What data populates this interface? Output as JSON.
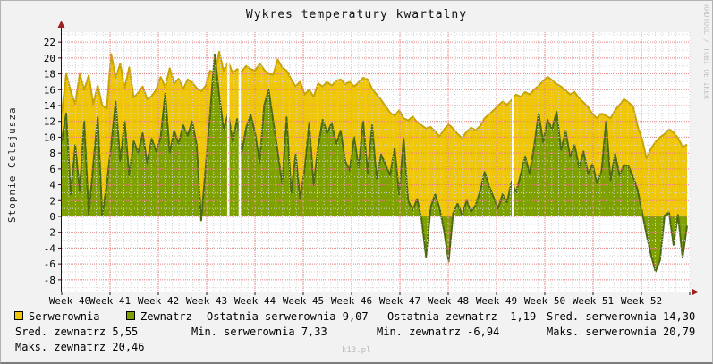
{
  "chart_data": {
    "type": "area",
    "title": "Wykres temperatury kwartalny",
    "ylabel": "Stopnie Celsjusza",
    "xlabel": "",
    "ylim": [
      -9.5,
      23.2
    ],
    "y_ticks": [
      -8,
      -6,
      -4,
      -2,
      0,
      2,
      4,
      6,
      8,
      10,
      12,
      14,
      16,
      18,
      20,
      22
    ],
    "x_tick_labels": [
      "Week 40",
      "Week 41",
      "Week 42",
      "Week 43",
      "Week 44",
      "Week 45",
      "Week 46",
      "Week 47",
      "Week 48",
      "Week 49",
      "Week 50",
      "Week 51",
      "Week 52"
    ],
    "grid": true,
    "legend_position": "bottom",
    "missing_data_gaps_x_fraction": [
      0.265,
      0.283,
      0.718
    ],
    "series": [
      {
        "name": "Serwerownia",
        "fill_color": "#f0c609",
        "line_color": "#c7a400",
        "values": [
          13.0,
          18.0,
          15.8,
          14.2,
          18.0,
          16.0,
          17.8,
          14.2,
          16.5,
          14.0,
          13.6,
          20.5,
          17.5,
          19.3,
          16.2,
          18.8,
          15.0,
          15.6,
          16.4,
          14.8,
          15.2,
          16.0,
          17.6,
          16.3,
          18.7,
          16.8,
          17.4,
          16.1,
          17.3,
          16.9,
          16.2,
          15.8,
          16.5,
          18.4,
          18.0,
          20.79,
          18.4,
          19.5,
          18.1,
          18.6,
          18.3,
          19.0,
          18.6,
          18.4,
          19.3,
          18.5,
          18.0,
          17.9,
          19.8,
          18.8,
          18.4,
          17.3,
          16.4,
          17.0,
          15.4,
          16.0,
          15.1,
          16.8,
          16.4,
          17.0,
          16.5,
          17.1,
          17.3,
          16.7,
          17.0,
          16.4,
          16.9,
          17.5,
          17.3,
          16.1,
          15.4,
          14.7,
          13.9,
          13.1,
          12.7,
          13.4,
          12.4,
          12.1,
          12.6,
          11.9,
          11.5,
          11.1,
          11.3,
          10.7,
          10.1,
          11.0,
          11.6,
          11.1,
          10.4,
          9.9,
          10.7,
          11.2,
          10.9,
          11.4,
          12.4,
          12.9,
          13.4,
          14.0,
          14.5,
          14.1,
          14.7,
          15.4,
          15.1,
          15.7,
          15.4,
          16.0,
          16.5,
          17.1,
          17.6,
          17.2,
          16.7,
          16.4,
          15.9,
          15.4,
          15.7,
          14.9,
          14.4,
          13.8,
          12.9,
          12.4,
          13.0,
          12.7,
          12.4,
          13.4,
          14.1,
          14.8,
          14.4,
          13.9,
          11.4,
          9.8,
          7.33,
          8.6,
          9.4,
          10.0,
          10.4,
          11.0,
          10.6,
          9.9,
          8.8,
          9.07
        ]
      },
      {
        "name": "Zewnatrz",
        "fill_color": "#7ea100",
        "line_color": "#4d6a12",
        "values": [
          9.5,
          13.0,
          2.8,
          9.0,
          3.2,
          12.0,
          0.2,
          6.5,
          12.5,
          0.1,
          4.0,
          9.0,
          14.5,
          7.0,
          12.0,
          5.2,
          9.5,
          8.0,
          10.5,
          6.8,
          9.8,
          8.2,
          10.0,
          15.5,
          8.0,
          10.8,
          9.2,
          11.5,
          10.2,
          12.0,
          9.0,
          -0.5,
          6.2,
          13.0,
          20.46,
          15.3,
          11.0,
          13.0,
          9.5,
          12.3,
          8.0,
          11.2,
          12.8,
          10.5,
          6.8,
          14.0,
          16.0,
          12.0,
          8.2,
          4.2,
          12.5,
          3.0,
          7.8,
          2.2,
          6.0,
          11.8,
          4.0,
          8.8,
          12.2,
          10.5,
          11.8,
          9.2,
          10.8,
          7.0,
          5.8,
          10.0,
          6.2,
          12.0,
          5.5,
          11.5,
          4.8,
          7.8,
          6.5,
          5.2,
          8.6,
          2.8,
          9.8,
          2.0,
          0.8,
          2.2,
          -0.4,
          -5.1,
          1.2,
          2.8,
          1.0,
          -1.8,
          -5.7,
          0.4,
          1.6,
          0.2,
          2.0,
          0.6,
          1.4,
          3.2,
          5.6,
          3.8,
          2.4,
          1.0,
          2.8,
          1.8,
          4.4,
          3.0,
          5.2,
          7.6,
          5.4,
          8.8,
          13.0,
          9.4,
          12.2,
          11.0,
          13.2,
          8.4,
          10.8,
          7.6,
          9.0,
          6.2,
          8.2,
          5.4,
          6.6,
          4.2,
          5.8,
          12.0,
          4.6,
          7.9,
          5.2,
          6.5,
          6.3,
          5.0,
          3.4,
          0.6,
          -2.3,
          -4.9,
          -6.94,
          -5.5,
          0.1,
          0.5,
          -3.6,
          0.2,
          -5.2,
          -1.19
        ]
      }
    ],
    "stats": {
      "serwerownia": {
        "last": "9,07",
        "avg": "14,30",
        "min": "7,33",
        "max": "20,79"
      },
      "zewnatrz": {
        "last": "-1,19",
        "avg": "5,55",
        "min": "-6,94",
        "max": "20,46"
      }
    }
  },
  "legend": {
    "series": [
      {
        "label": "Serwerownia",
        "color": "#f0c609"
      },
      {
        "label": "Zewnatrz",
        "color": "#7ea100"
      }
    ],
    "stats": {
      "ostatnia_serwerownia": "Ostatnia serwerownia 9,07",
      "ostatnia_zewnatrz": "Ostatnia zewnatrz -1,19",
      "sred_serwerownia": "Sred. serwerownia 14,30",
      "sred_zewnatrz": "Sred. zewnatrz 5,55",
      "min_serwerownia": "Min. serwerownia 7,33",
      "min_zewnatrz": "Min. zewnatrz -6,94",
      "maks_serwerownia": "Maks. serwerownia 20,79",
      "maks_zewnatrz": "Maks. zewnatrz 20,46"
    }
  },
  "branding": {
    "watermark": "k13.pl",
    "rrdtool_credit": "RRDTOOL / TOBI OETIKER"
  },
  "colors": {
    "background": "#f2f2f2",
    "plot_background": "#ffffff",
    "major_grid": "#e98080",
    "minor_grid": "#d4d4d4",
    "axis": "#1a1a1a",
    "arrow": "#a02020"
  }
}
